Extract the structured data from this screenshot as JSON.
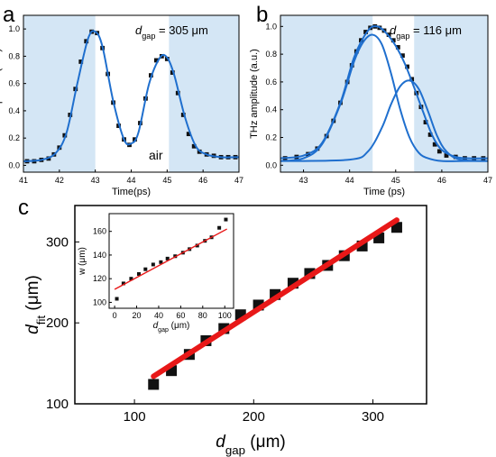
{
  "panel_labels": {
    "a": "a",
    "b": "b",
    "c": "c"
  },
  "annotations": {
    "a_gap": {
      "main": "d",
      "sub": "gap",
      "rest": " = 305  μm"
    },
    "a_air": "air",
    "b_gap": {
      "main": "d",
      "sub": "gap",
      "rest": " = 116  μm"
    }
  },
  "colors": {
    "fit": "#1f6fce",
    "shade": "#d4e6f5",
    "linear_fit": "#e81818",
    "marker": "#111111"
  },
  "chart_data": [
    {
      "id": "a",
      "type": "line",
      "title": "",
      "xlabel": "Time(ps)",
      "ylabel": "THz Amplitude (a.u.)",
      "xlim": [
        41,
        47
      ],
      "ylim": [
        -0.05,
        1.1
      ],
      "x_ticks": [
        41,
        42,
        43,
        44,
        45,
        46,
        47
      ],
      "y_ticks": [
        0.0,
        0.2,
        0.4,
        0.6,
        0.8,
        1.0
      ],
      "shaded_regions": [
        [
          41,
          43.0
        ],
        [
          45.05,
          47
        ]
      ],
      "series": [
        {
          "kind": "markers",
          "x": [
            41.1,
            41.3,
            41.5,
            41.7,
            41.85,
            42.0,
            42.15,
            42.3,
            42.45,
            42.6,
            42.75,
            42.9,
            43.05,
            43.2,
            43.35,
            43.5,
            43.65,
            43.8,
            43.95,
            44.1,
            44.25,
            44.4,
            44.55,
            44.7,
            44.85,
            45.0,
            45.15,
            45.3,
            45.45,
            45.6,
            45.75,
            45.9,
            46.1,
            46.3,
            46.5,
            46.7,
            46.9
          ],
          "y": [
            0.03,
            0.03,
            0.04,
            0.05,
            0.08,
            0.13,
            0.22,
            0.37,
            0.56,
            0.76,
            0.91,
            0.98,
            0.97,
            0.86,
            0.67,
            0.46,
            0.29,
            0.19,
            0.15,
            0.19,
            0.31,
            0.49,
            0.66,
            0.77,
            0.8,
            0.78,
            0.68,
            0.53,
            0.37,
            0.23,
            0.14,
            0.1,
            0.08,
            0.07,
            0.06,
            0.06,
            0.06
          ]
        },
        {
          "kind": "fit",
          "x": [
            41.0,
            41.5,
            41.9,
            42.2,
            42.5,
            42.8,
            43.0,
            43.2,
            43.5,
            43.8,
            44.0,
            44.2,
            44.5,
            44.8,
            45.0,
            45.2,
            45.5,
            45.8,
            46.1,
            46.5,
            47.0
          ],
          "y": [
            0.03,
            0.04,
            0.09,
            0.24,
            0.6,
            0.93,
            0.98,
            0.87,
            0.47,
            0.19,
            0.16,
            0.24,
            0.6,
            0.79,
            0.79,
            0.66,
            0.35,
            0.14,
            0.08,
            0.06,
            0.06
          ]
        }
      ]
    },
    {
      "id": "b",
      "type": "line",
      "title": "",
      "xlabel": "Time (ps)",
      "ylabel": "THz amplitude (a.u.)",
      "xlim": [
        42.5,
        47
      ],
      "ylim": [
        -0.05,
        1.08
      ],
      "x_ticks": [
        43,
        44,
        45,
        46,
        47
      ],
      "y_ticks": [
        0.0,
        0.2,
        0.4,
        0.6,
        0.8,
        1.0
      ],
      "shaded_regions": [
        [
          42.5,
          44.5
        ],
        [
          45.4,
          47
        ]
      ],
      "series": [
        {
          "kind": "markers",
          "x": [
            42.6,
            42.85,
            43.1,
            43.3,
            43.5,
            43.65,
            43.8,
            43.95,
            44.05,
            44.15,
            44.25,
            44.35,
            44.45,
            44.55,
            44.65,
            44.75,
            44.85,
            44.95,
            45.05,
            45.15,
            45.25,
            45.35,
            45.45,
            45.55,
            45.65,
            45.75,
            45.85,
            45.95,
            46.1,
            46.3,
            46.5,
            46.7,
            46.9
          ],
          "y": [
            0.05,
            0.06,
            0.08,
            0.12,
            0.21,
            0.32,
            0.45,
            0.6,
            0.72,
            0.82,
            0.9,
            0.96,
            0.99,
            1.0,
            0.99,
            0.97,
            0.94,
            0.9,
            0.85,
            0.79,
            0.71,
            0.62,
            0.52,
            0.42,
            0.31,
            0.22,
            0.15,
            0.1,
            0.07,
            0.06,
            0.05,
            0.05,
            0.05
          ]
        },
        {
          "kind": "fit_total",
          "x": [
            42.5,
            43.0,
            43.4,
            43.8,
            44.1,
            44.4,
            44.6,
            44.8,
            45.0,
            45.2,
            45.4,
            45.6,
            45.8,
            46.0,
            46.3,
            46.6,
            47.0
          ],
          "y": [
            0.05,
            0.07,
            0.16,
            0.45,
            0.78,
            0.97,
            1.0,
            0.95,
            0.86,
            0.73,
            0.56,
            0.38,
            0.21,
            0.11,
            0.06,
            0.05,
            0.05
          ]
        },
        {
          "kind": "fit_component_1",
          "x": [
            42.5,
            43.0,
            43.4,
            43.8,
            44.1,
            44.3,
            44.5,
            44.7,
            44.9,
            45.1,
            45.3,
            45.5,
            45.7,
            46.0,
            46.5,
            47.0
          ],
          "y": [
            0.03,
            0.05,
            0.15,
            0.44,
            0.75,
            0.89,
            0.94,
            0.87,
            0.66,
            0.4,
            0.2,
            0.09,
            0.05,
            0.03,
            0.03,
            0.03
          ]
        },
        {
          "kind": "fit_component_2",
          "x": [
            42.5,
            44.0,
            44.4,
            44.7,
            44.9,
            45.1,
            45.3,
            45.5,
            45.7,
            45.9,
            46.1,
            46.4,
            47.0
          ],
          "y": [
            0.03,
            0.04,
            0.1,
            0.27,
            0.44,
            0.57,
            0.61,
            0.55,
            0.39,
            0.21,
            0.1,
            0.04,
            0.03
          ]
        }
      ]
    },
    {
      "id": "c",
      "type": "scatter",
      "title": "",
      "xlabel": {
        "main": "d",
        "sub": "gap",
        "rest": " (μm)"
      },
      "ylabel": {
        "main": "d",
        "sub": "fit",
        "rest": " (μm)"
      },
      "xlim": [
        50,
        345
      ],
      "ylim": [
        100,
        345
      ],
      "x_ticks": [
        100,
        200,
        300
      ],
      "y_ticks": [
        100,
        200,
        300
      ],
      "series": [
        {
          "kind": "markers",
          "x": [
            116,
            131,
            146,
            160,
            175,
            189,
            204,
            218,
            233,
            247,
            262,
            276,
            291,
            305,
            320
          ],
          "y": [
            124,
            141,
            161,
            178,
            193,
            210,
            222,
            235,
            249,
            261,
            271,
            283,
            295,
            305,
            318
          ]
        },
        {
          "kind": "linear_fit",
          "x": [
            116,
            320
          ],
          "y": [
            134,
            327
          ]
        }
      ],
      "inset": {
        "type": "scatter",
        "xlabel": {
          "main": "d",
          "sub": "gap",
          "rest": " (μm)"
        },
        "ylabel": "w (μm)",
        "xlim": [
          -5,
          108
        ],
        "ylim": [
          95,
          175
        ],
        "x_ticks": [
          0,
          20,
          40,
          60,
          80,
          100
        ],
        "y_ticks": [
          100,
          120,
          140,
          160
        ],
        "series": [
          {
            "kind": "markers",
            "x": [
              2,
              8,
              15,
              22,
              28,
              35,
              42,
              48,
              55,
              62,
              68,
              75,
              82,
              88,
              95,
              101
            ],
            "y": [
              103,
              116,
              120,
              124,
              128,
              132,
              134,
              137,
              139,
              142,
              145,
              148,
              152,
              155,
              163,
              170
            ]
          },
          {
            "kind": "linear_fit",
            "x": [
              0,
              102
            ],
            "y": [
              111,
              162
            ]
          }
        ]
      }
    }
  ]
}
